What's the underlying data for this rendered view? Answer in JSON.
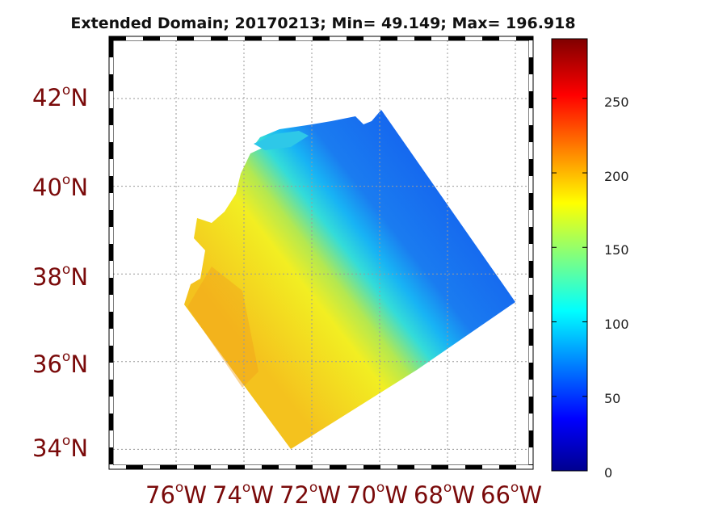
{
  "title": "Extended Domain; 20170213; Min= 49.149; Max= 196.918",
  "map": {
    "lat_labels": [
      {
        "deg": "42",
        "hemi": "N",
        "value": 42
      },
      {
        "deg": "40",
        "hemi": "N",
        "value": 40
      },
      {
        "deg": "38",
        "hemi": "N",
        "value": 38
      },
      {
        "deg": "36",
        "hemi": "N",
        "value": 36
      },
      {
        "deg": "34",
        "hemi": "N",
        "value": 34
      }
    ],
    "lon_labels": [
      {
        "deg": "76",
        "hemi": "W",
        "value": -76
      },
      {
        "deg": "74",
        "hemi": "W",
        "value": -74
      },
      {
        "deg": "72",
        "hemi": "W",
        "value": -72
      },
      {
        "deg": "70",
        "hemi": "W",
        "value": -70
      },
      {
        "deg": "68",
        "hemi": "W",
        "value": -68
      },
      {
        "deg": "66",
        "hemi": "W",
        "value": -66
      }
    ],
    "degree_symbol": "o"
  },
  "colorbar": {
    "min": 0,
    "max": 290,
    "ticks": [
      "0",
      "50",
      "100",
      "150",
      "200",
      "250"
    ],
    "tick_values": [
      0,
      50,
      100,
      150,
      200,
      250
    ],
    "colormap": "jet"
  },
  "colors": {
    "label_color": "#7a0a0a",
    "grid_color": "#9a9a9a",
    "frame_color": "#000000"
  }
}
